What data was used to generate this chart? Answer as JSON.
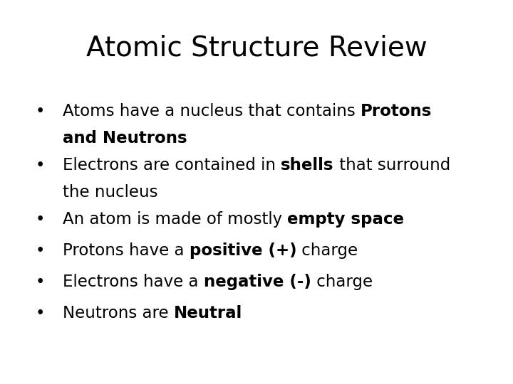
{
  "title": "Atomic Structure Review",
  "title_fontsize": 28,
  "background_color": "#ffffff",
  "text_color": "#000000",
  "font_size": 16.5,
  "bullet_char": "•",
  "bullet_items": [
    {
      "lines": [
        [
          {
            "text": "Atoms have a nucleus that contains ",
            "bold": false
          },
          {
            "text": "Protons",
            "bold": true
          }
        ],
        [
          {
            "text": "and Neutrons",
            "bold": true
          }
        ]
      ]
    },
    {
      "lines": [
        [
          {
            "text": "Electrons are contained in ",
            "bold": false
          },
          {
            "text": "shells",
            "bold": true
          },
          {
            "text": " that surround",
            "bold": false
          }
        ],
        [
          {
            "text": "the nucleus",
            "bold": false
          }
        ]
      ]
    },
    {
      "lines": [
        [
          {
            "text": "An atom is made of mostly ",
            "bold": false
          },
          {
            "text": "empty space",
            "bold": true
          }
        ]
      ]
    },
    {
      "lines": [
        [
          {
            "text": "Protons have a ",
            "bold": false
          },
          {
            "text": "positive (+)",
            "bold": true
          },
          {
            "text": " charge",
            "bold": false
          }
        ]
      ]
    },
    {
      "lines": [
        [
          {
            "text": "Electrons have a ",
            "bold": false
          },
          {
            "text": "negative (-)",
            "bold": true
          },
          {
            "text": " charge",
            "bold": false
          }
        ]
      ]
    },
    {
      "lines": [
        [
          {
            "text": "Neutrons are ",
            "bold": false
          },
          {
            "text": "Neutral",
            "bold": true
          }
        ]
      ]
    }
  ]
}
